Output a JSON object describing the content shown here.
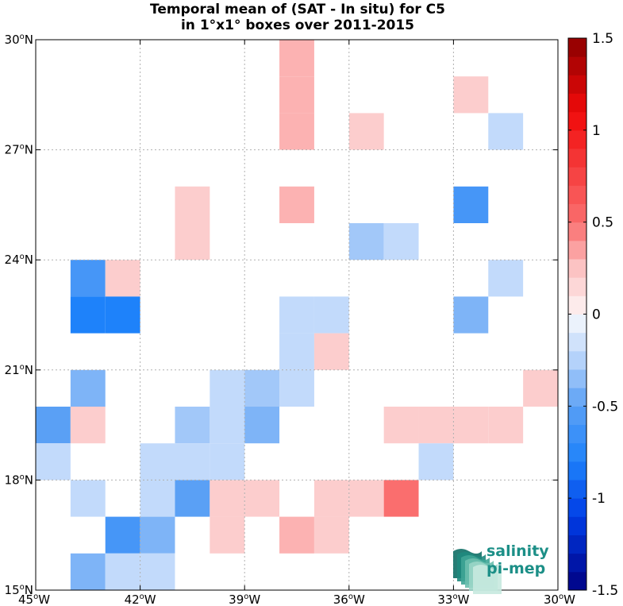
{
  "title": {
    "line1": "Temporal mean of (SAT - In situ) for C5",
    "line2": "in 1°x1° boxes over 2011-2015"
  },
  "logo": {
    "line1": "salinity",
    "line2": "pi-mep"
  },
  "chart_data": {
    "type": "heatmap",
    "title": "Temporal mean of (SAT - In situ) for C5 in 1°x1° boxes over 2011-2015",
    "x_axis": {
      "range": [
        -45,
        -30
      ],
      "ticks": [
        -45,
        -42,
        -39,
        -36,
        -33,
        -30
      ],
      "tick_labels": [
        "45°W",
        "42°W",
        "39°W",
        "36°W",
        "33°W",
        "30°W"
      ]
    },
    "y_axis": {
      "range": [
        15,
        30
      ],
      "ticks": [
        15,
        18,
        21,
        24,
        27,
        30
      ],
      "tick_labels": [
        "15°N",
        "18°N",
        "21°N",
        "24°N",
        "27°N",
        "30°N"
      ]
    },
    "grid": true,
    "colorbar": {
      "range": [
        -1.5,
        1.5
      ],
      "ticks": [
        -1.5,
        -1,
        -0.5,
        0,
        0.5,
        1,
        1.5
      ],
      "tick_labels": [
        "-1.5",
        "-1",
        "-0.5",
        "0",
        "0.5",
        "1",
        "1.5"
      ],
      "steps": 30,
      "cmap": "blue-white-red"
    },
    "cells": [
      {
        "lon": -38,
        "lat": 29,
        "value": 0.3
      },
      {
        "lon": -38,
        "lat": 28,
        "value": 0.3
      },
      {
        "lon": -38,
        "lat": 27,
        "value": 0.3
      },
      {
        "lon": -33,
        "lat": 28,
        "value": 0.2
      },
      {
        "lon": -36,
        "lat": 27,
        "value": 0.2
      },
      {
        "lon": -32,
        "lat": 27,
        "value": -0.2
      },
      {
        "lon": -41,
        "lat": 25,
        "value": 0.2
      },
      {
        "lon": -41,
        "lat": 24,
        "value": 0.2
      },
      {
        "lon": -38,
        "lat": 25,
        "value": 0.3
      },
      {
        "lon": -33,
        "lat": 25,
        "value": -0.6
      },
      {
        "lon": -36,
        "lat": 24,
        "value": -0.3
      },
      {
        "lon": -35,
        "lat": 24,
        "value": -0.2
      },
      {
        "lon": -44,
        "lat": 23,
        "value": -0.6
      },
      {
        "lon": -43,
        "lat": 23,
        "value": 0.2
      },
      {
        "lon": -32,
        "lat": 23,
        "value": -0.2
      },
      {
        "lon": -44,
        "lat": 22,
        "value": -0.8
      },
      {
        "lon": -43,
        "lat": 22,
        "value": -0.8
      },
      {
        "lon": -38,
        "lat": 22,
        "value": -0.2
      },
      {
        "lon": -37,
        "lat": 22,
        "value": -0.2
      },
      {
        "lon": -33,
        "lat": 22,
        "value": -0.4
      },
      {
        "lon": -38,
        "lat": 21,
        "value": -0.2
      },
      {
        "lon": -37,
        "lat": 21,
        "value": 0.2
      },
      {
        "lon": -44,
        "lat": 20,
        "value": -0.4
      },
      {
        "lon": -40,
        "lat": 20,
        "value": -0.2
      },
      {
        "lon": -39,
        "lat": 20,
        "value": -0.3
      },
      {
        "lon": -38,
        "lat": 20,
        "value": -0.2
      },
      {
        "lon": -31,
        "lat": 20,
        "value": 0.2
      },
      {
        "lon": -45,
        "lat": 19,
        "value": -0.5
      },
      {
        "lon": -44,
        "lat": 19,
        "value": 0.2
      },
      {
        "lon": -41,
        "lat": 19,
        "value": -0.3
      },
      {
        "lon": -40,
        "lat": 19,
        "value": -0.2
      },
      {
        "lon": -39,
        "lat": 19,
        "value": -0.4
      },
      {
        "lon": -35,
        "lat": 19,
        "value": 0.2
      },
      {
        "lon": -34,
        "lat": 19,
        "value": 0.2
      },
      {
        "lon": -33,
        "lat": 19,
        "value": 0.2
      },
      {
        "lon": -32,
        "lat": 19,
        "value": 0.2
      },
      {
        "lon": -45,
        "lat": 18,
        "value": -0.2
      },
      {
        "lon": -42,
        "lat": 18,
        "value": -0.2
      },
      {
        "lon": -41,
        "lat": 18,
        "value": -0.2
      },
      {
        "lon": -40,
        "lat": 18,
        "value": -0.2
      },
      {
        "lon": -34,
        "lat": 18,
        "value": -0.2
      },
      {
        "lon": -44,
        "lat": 17,
        "value": -0.2
      },
      {
        "lon": -42,
        "lat": 17,
        "value": -0.2
      },
      {
        "lon": -41,
        "lat": 17,
        "value": -0.5
      },
      {
        "lon": -40,
        "lat": 17,
        "value": 0.2
      },
      {
        "lon": -39,
        "lat": 17,
        "value": 0.2
      },
      {
        "lon": -37,
        "lat": 17,
        "value": 0.2
      },
      {
        "lon": -36,
        "lat": 17,
        "value": 0.2
      },
      {
        "lon": -35,
        "lat": 17,
        "value": 0.5
      },
      {
        "lon": -43,
        "lat": 16,
        "value": -0.6
      },
      {
        "lon": -42,
        "lat": 16,
        "value": -0.4
      },
      {
        "lon": -40,
        "lat": 16,
        "value": 0.2
      },
      {
        "lon": -38,
        "lat": 16,
        "value": 0.3
      },
      {
        "lon": -37,
        "lat": 16,
        "value": 0.2
      },
      {
        "lon": -44,
        "lat": 15,
        "value": -0.4
      },
      {
        "lon": -43,
        "lat": 15,
        "value": -0.2
      },
      {
        "lon": -42,
        "lat": 15,
        "value": -0.2
      }
    ]
  }
}
